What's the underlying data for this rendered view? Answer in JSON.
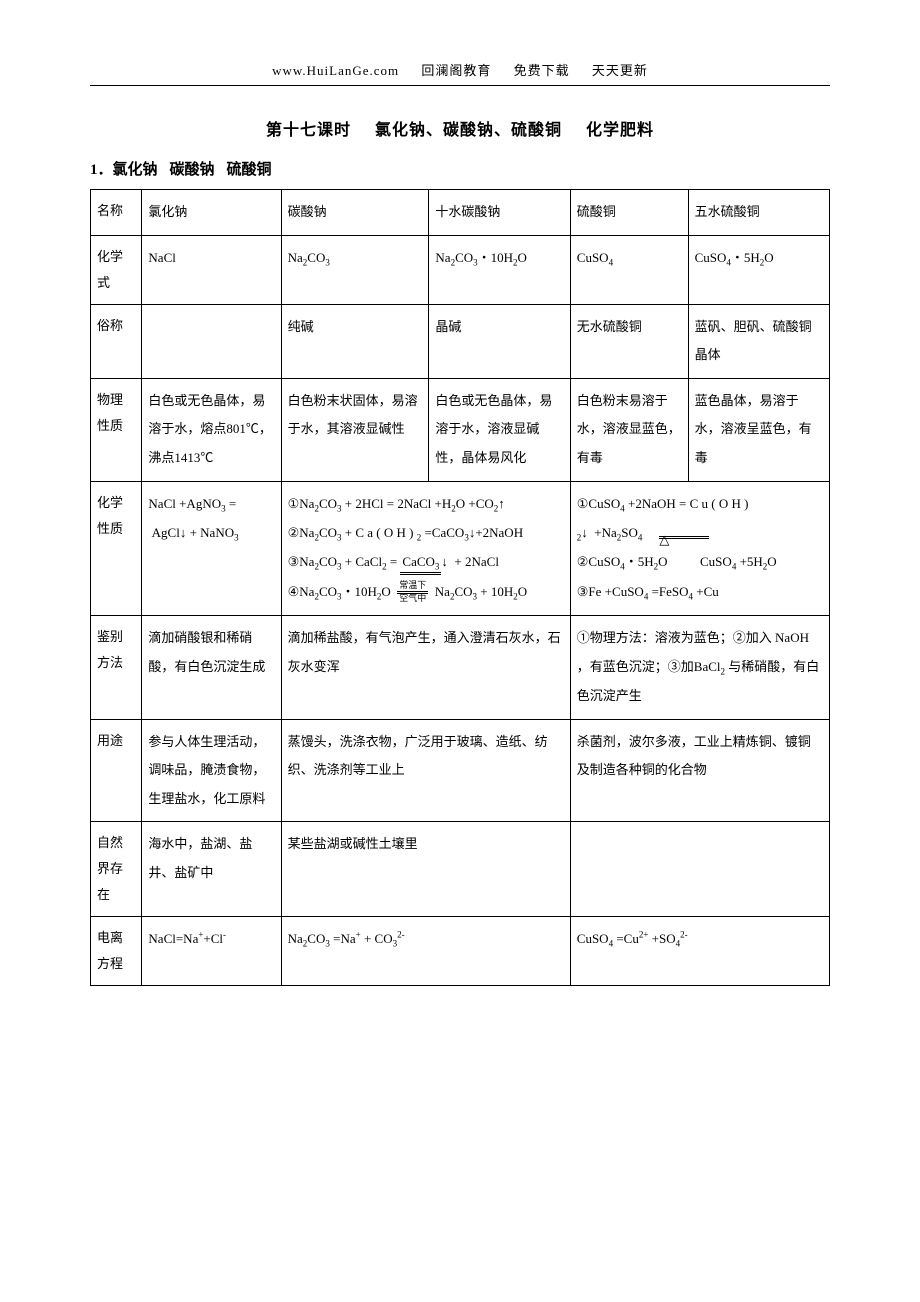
{
  "header": {
    "url": "www.HuiLanGe.com",
    "brand": "回澜阁教育",
    "free": "免费下载",
    "daily": "天天更新"
  },
  "title": {
    "prefix": "第十七课时",
    "middle": "氯化钠、碳酸钠、硫酸铜",
    "suffix": "化学肥料"
  },
  "section1": {
    "num": "1．",
    "a": "氯化钠",
    "b": "碳酸钠",
    "c": "硫酸铜"
  },
  "rows": {
    "name": "名称",
    "formula": "化学式",
    "common": "俗称",
    "phys": "物理性质",
    "chem": "化学性质",
    "ident": "鉴别方法",
    "use": "用途",
    "nature": "自然界存在",
    "ion": "电离方程"
  },
  "c1": {
    "name": "氯化钠",
    "formula_html": "NaCl",
    "common": "",
    "phys": "白色或无色晶体，易溶于水，熔点801℃，沸点1413℃",
    "chem_html": "NaCl +AgNO<span class='sub'>3</span> = &nbsp;AgCl↓ + NaNO<span class='sub'>3</span>",
    "ident": "滴加硝酸银和稀硝酸，有白色沉淀生成",
    "use": "参与人体生理活动，调味品，腌渍食物，生理盐水，化工原料",
    "nature": "海水中，盐湖、盐井、盐矿中",
    "ion_html": "NaCl=Na<span class='sup'>+</span>+Cl<span class='sup'>-</span>"
  },
  "c2": {
    "name": "碳酸钠",
    "formula_html": "Na<span class='sub'>2</span>CO<span class='sub'>3</span>",
    "common": "纯碱",
    "phys": "白色粉末状固体，易溶于水，其溶液显碱性",
    "ion_html": "Na<span class='sub'>2</span>CO<span class='sub'>3</span> =Na<span class='sup'>+</span> + CO<span class='sub'>3</span><span class='sup'>2-</span>"
  },
  "c3": {
    "name": "十水碳酸钠",
    "formula_html": "Na<span class='sub'>2</span>CO<span class='sub'>3</span>・10H<span class='sub'>2</span>O",
    "common": "晶碱",
    "phys": "白色或无色晶体，易溶于水，溶液显碱性，晶体易风化"
  },
  "c23": {
    "chem_html": "①Na<span class='sub'>2</span>CO<span class='sub'>3</span> + 2HCl = 2NaCl +H<span class='sub'>2</span>O +CO<span class='sub'>2</span>↑<br>②Na<span class='sub'>2</span>CO<span class='sub'>3</span> + C a ( O H ) <span class='sub'>2</span>  =CaCO<span class='sub'>3</span>↓+2NaOH<br>③Na<span class='sub'>2</span>CO<span class='sub'>3</span> + CaCl<span class='sub'>2</span> = <span class='under-dbl'>CaCO<span class='sub'>3</span></span>↓&nbsp;&nbsp;+ 2NaCl<br>④Na<span class='sub'>2</span>CO<span class='sub'>3</span>・10H<span class='sub'>2</span>O&nbsp;&nbsp;<span class='stack'><span>常温下</span><span class='bot'>空气中</span></span>&nbsp;&nbsp;Na<span class='sub'>2</span>CO<span class='sub'>3</span> + 10H<span class='sub'>2</span>O",
    "ident": "滴加稀盐酸，有气泡产生，通入澄清石灰水，石灰水变浑",
    "use": "蒸馒头，洗涤衣物，广泛用于玻璃、造纸、纺织、洗涤剂等工业上",
    "nature": "某些盐湖或碱性土壤里"
  },
  "c4": {
    "name": "硫酸铜",
    "formula_html": "CuSO<span class='sub'>4</span>",
    "common": "无水硫酸铜",
    "phys": "白色粉末易溶于水，溶液显蓝色，有毒",
    "ion_html": "CuSO<span class='sub'>4</span> =Cu<span class='sup'>2+</span> +SO<span class='sub'>4</span><span class='sup'>2-</span>"
  },
  "c5": {
    "name": "五水硫酸铜",
    "formula_html": "CuSO<span class='sub'>4</span>・5H<span class='sub'>2</span>O",
    "common": "蓝矾、胆矾、硫酸铜晶体",
    "phys": "蓝色晶体，易溶于水，溶液呈蓝色，有毒"
  },
  "c45": {
    "chem_html": "①CuSO<span class='sub'>4</span> +2NaOH = C u ( O H ) <span class='sub'>2</span>↓&nbsp;&nbsp;+Na<span class='sub'>2</span>SO<span class='sub'>4</span>&nbsp;&nbsp;&nbsp;&nbsp;<span class='under-dbl-wide'><span class='tri'>△</span></span><br>②CuSO<span class='sub'>4</span>・5H<span class='sub'>2</span>O&nbsp;&nbsp;&nbsp;&nbsp;&nbsp;&nbsp;&nbsp;&nbsp;&nbsp;&nbsp;CuSO<span class='sub'>4</span> +5H<span class='sub'>2</span>O<br>③Fe +CuSO<span class='sub'>4</span> =FeSO<span class='sub'>4</span> +Cu",
    "ident": "①物理方法：溶液为蓝色；②加入 NaOH ，有蓝色沉淀；③加BaCl<span class='sub'>2</span> 与稀硝酸，有白色沉淀产生",
    "use": "杀菌剂，波尔多液，工业上精炼铜、镀铜及制造各种铜的化合物"
  }
}
